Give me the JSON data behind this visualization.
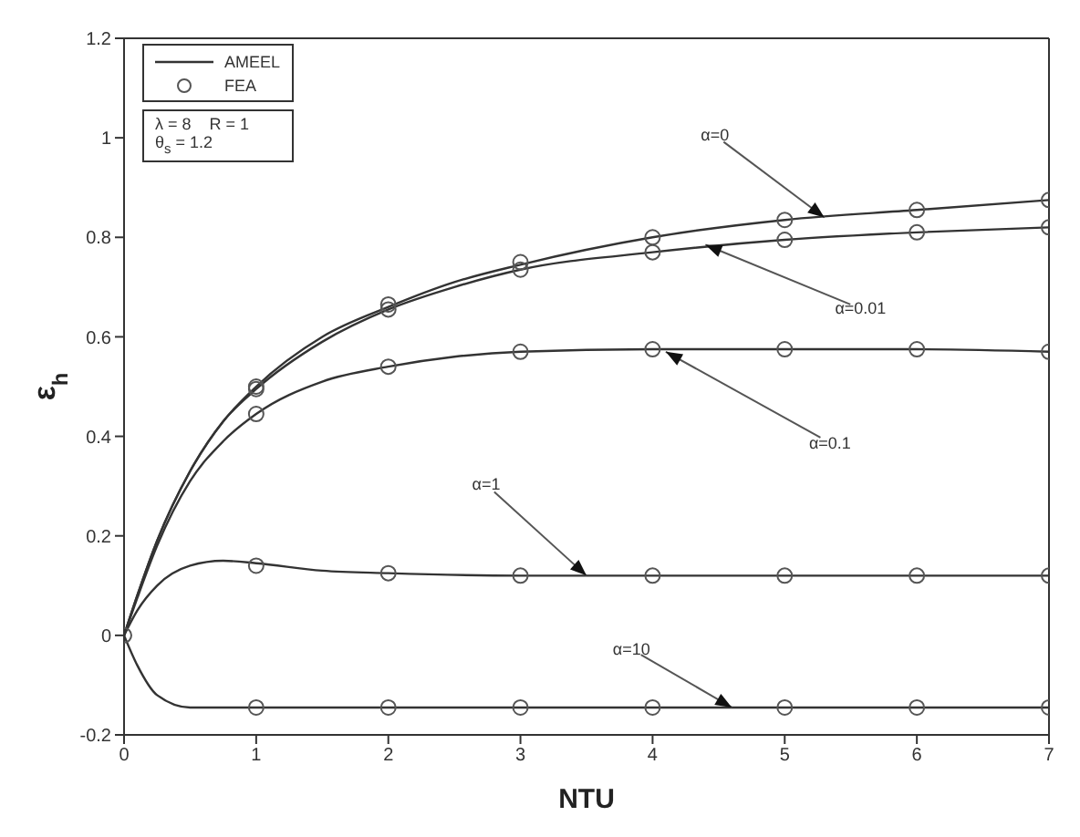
{
  "chart_data": {
    "type": "line",
    "xlabel": "NTU",
    "ylabel": "ε$_{h}$",
    "xlim": [
      0,
      7
    ],
    "xticks": [
      0,
      1,
      2,
      3,
      4,
      5,
      6,
      7
    ],
    "ylim": [
      -0.2,
      1.2
    ],
    "yticks": [
      -0.2,
      0,
      0.2,
      0.4,
      0.6,
      0.8,
      1,
      1.2
    ],
    "grid": false,
    "legend": "top left",
    "line_style": "solid",
    "series": [
      {
        "name": "AMEEL",
        "color": "#333333",
        "marker": "none",
        "x": [
          0,
          0.1,
          0.25,
          0.5,
          0.75,
          1,
          1.5,
          2,
          2.5,
          3,
          4,
          5,
          6,
          7
        ],
        "values": [
          0,
          0.08,
          0.19,
          0.33,
          0.43,
          0.5,
          0.6,
          0.66,
          0.71,
          0.745,
          0.8,
          0.835,
          0.855,
          0.875
        ]
      },
      {
        "color": "#333333",
        "marker": "none",
        "x": [
          0,
          0.1,
          0.25,
          0.5,
          0.75,
          1,
          1.5,
          2,
          2.5,
          3,
          4,
          5,
          6,
          7
        ],
        "values": [
          0,
          0.08,
          0.19,
          0.33,
          0.43,
          0.495,
          0.59,
          0.655,
          0.7,
          0.735,
          0.77,
          0.795,
          0.81,
          0.82
        ]
      },
      {
        "color": "#333333",
        "marker": "none",
        "x": [
          0,
          0.1,
          0.25,
          0.5,
          0.75,
          1,
          1.5,
          2,
          2.5,
          3,
          4,
          5,
          6,
          7
        ],
        "values": [
          0,
          0.075,
          0.18,
          0.31,
          0.39,
          0.445,
          0.51,
          0.54,
          0.56,
          0.57,
          0.575,
          0.575,
          0.575,
          0.57
        ]
      },
      {
        "color": "#333333",
        "marker": "none",
        "x": [
          0,
          0.1,
          0.25,
          0.5,
          0.75,
          1,
          1.5,
          2,
          3,
          4,
          5,
          6,
          7
        ],
        "values": [
          0,
          0.05,
          0.1,
          0.14,
          0.15,
          0.145,
          0.13,
          0.125,
          0.12,
          0.12,
          0.12,
          0.12,
          0.12
        ]
      },
      {
        "color": "#333333",
        "marker": "none",
        "x": [
          0,
          0.1,
          0.25,
          0.5,
          1,
          2,
          3,
          4,
          5,
          6,
          7
        ],
        "values": [
          0,
          -0.06,
          -0.12,
          -0.145,
          -0.145,
          -0.145,
          -0.145,
          -0.145,
          -0.145,
          -0.145,
          -0.145
        ]
      },
      {
        "type": "scatter",
        "name": "FEA",
        "color": "#555555",
        "marker": "circle",
        "x": [
          0,
          1,
          2,
          3,
          4,
          5,
          6,
          7
        ],
        "values": [
          0,
          0.5,
          0.665,
          0.75,
          0.8,
          0.835,
          0.855,
          0.875
        ]
      },
      {
        "type": "scatter",
        "color": "#555555",
        "marker": "circle",
        "x": [
          1,
          2,
          3,
          4,
          5,
          6,
          7
        ],
        "values": [
          0.495,
          0.655,
          0.735,
          0.77,
          0.795,
          0.81,
          0.82
        ]
      },
      {
        "type": "scatter",
        "color": "#555555",
        "marker": "circle",
        "x": [
          1,
          2,
          3,
          4,
          5,
          6,
          7
        ],
        "values": [
          0.445,
          0.54,
          0.57,
          0.575,
          0.575,
          0.575,
          0.57
        ]
      },
      {
        "type": "scatter",
        "color": "#555555",
        "marker": "circle",
        "x": [
          1,
          2,
          3,
          4,
          5,
          6,
          7
        ],
        "values": [
          0.14,
          0.125,
          0.12,
          0.12,
          0.12,
          0.12,
          0.12
        ]
      },
      {
        "type": "scatter",
        "color": "#555555",
        "marker": "circle",
        "x": [
          1,
          2,
          3,
          4,
          5,
          6,
          7
        ],
        "values": [
          -0.145,
          -0.145,
          -0.145,
          -0.145,
          -0.145,
          -0.145,
          -0.145
        ]
      }
    ],
    "annotations": [
      "λ = 8    R = 1",
      "θ$_{s}$ = 1.2",
      {
        "text": "α=0",
        "x": 5.3,
        "y": 0.84
      },
      {
        "text": "α=0.01",
        "x": 4.4,
        "y": 0.785
      },
      {
        "text": "α=0.1",
        "x": 4.1,
        "y": 0.57
      },
      {
        "text": "α=1",
        "x": 3.5,
        "y": 0.12
      },
      {
        "text": "α=10",
        "x": 4.6,
        "y": -0.145
      }
    ]
  }
}
